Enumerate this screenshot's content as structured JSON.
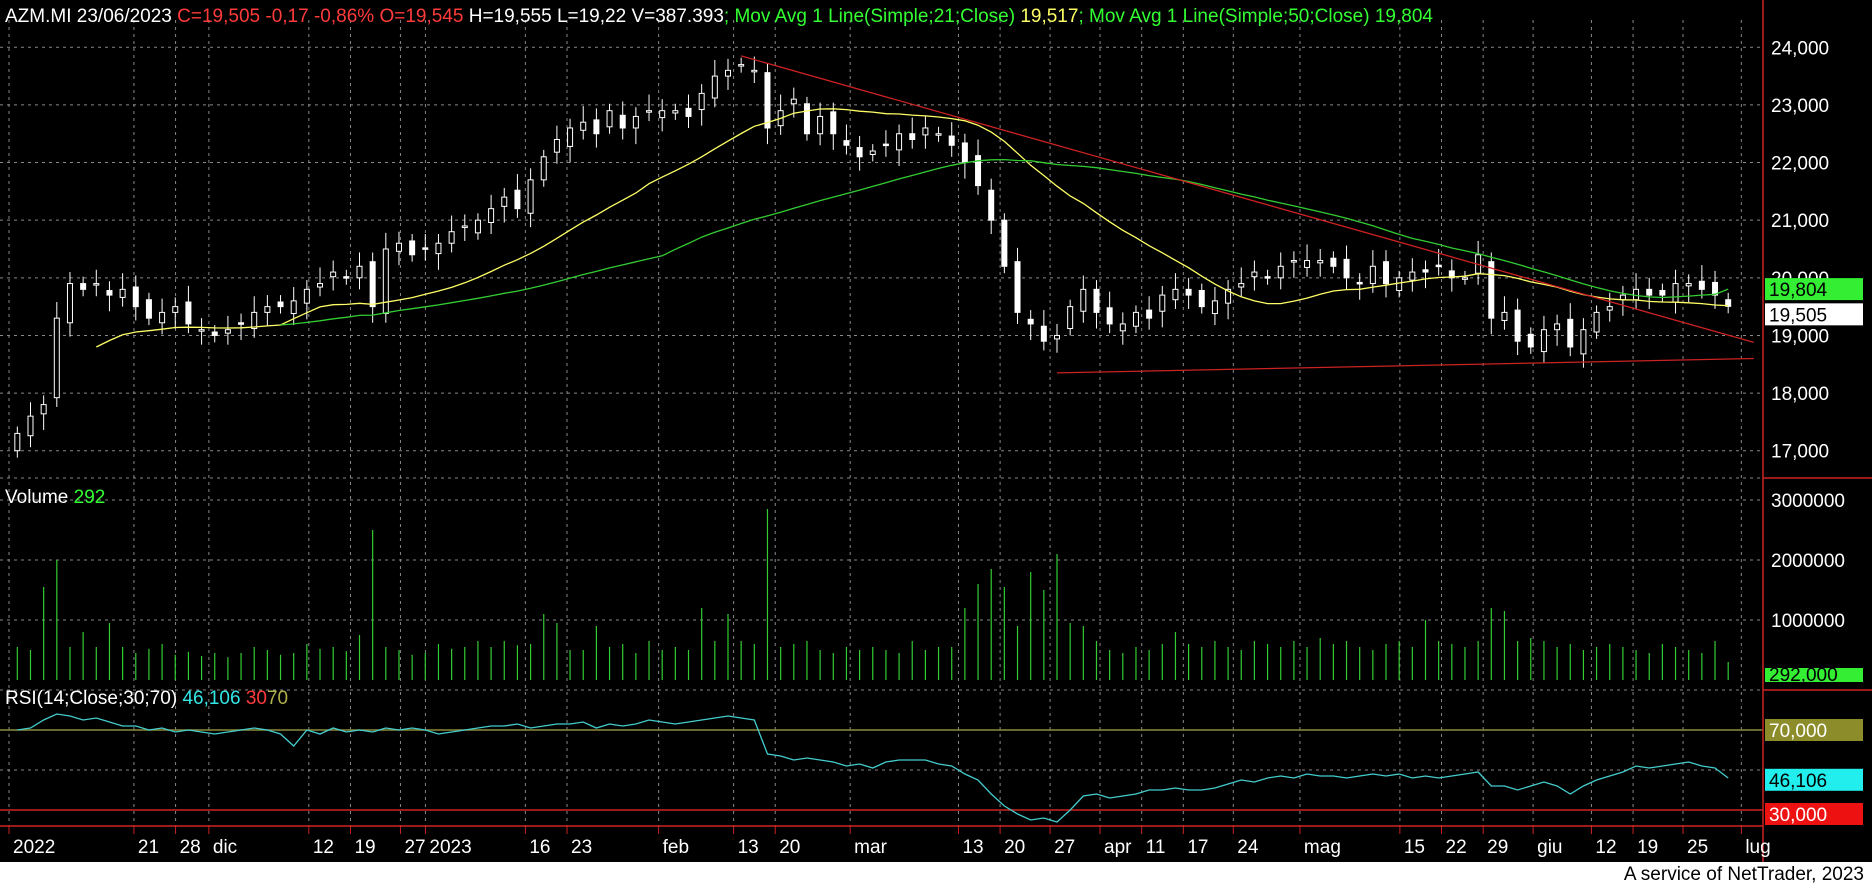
{
  "header": {
    "ticker": "AZM.MI",
    "date": "23/06/2023",
    "close": "C=19,505",
    "change": "-0,17",
    "change_pct": "-0,86%",
    "open": "O=19,545",
    "high": "H=19,555",
    "low": "L=19,22",
    "volume": "V=387.393",
    "ma1_label": "; Mov Avg 1 Line(Simple;21;Close)",
    "ma1_value": "19,517",
    "ma2_label": "; Mov Avg 1 Line(Simple;50;Close)",
    "ma2_value": "19,804"
  },
  "volume_header": {
    "label": "Volume",
    "value": "292"
  },
  "rsi_header": {
    "label": "RSI(14;Close;30;70)",
    "value": "46,106",
    "low": "30",
    "high": "70"
  },
  "footer": "A service of NetTrader, 2023",
  "colors": {
    "background": "#000000",
    "candle_up": "#ffffff",
    "candle_down": "#ffffff",
    "ma21": "#ffff66",
    "ma50": "#33cc33",
    "trendline": "#cc2222",
    "volume": "#33cc33",
    "rsi": "#44cccc",
    "rsi_upper": "#8c8c3c",
    "rsi_lower": "#cc2222",
    "grid": "#888888",
    "axis": "#cc2222"
  },
  "chart_data": [
    {
      "type": "candlestick",
      "title": "AZM.MI 23/06/2023",
      "y_ticks": [
        "24,000",
        "23,000",
        "22,000",
        "21,000",
        "20,000",
        "19,000",
        "18,000",
        "17,000"
      ],
      "ylim": [
        16.7,
        24.3
      ],
      "x_tick_labels": [
        "2022",
        "21",
        "28",
        "dic",
        "12",
        "19",
        "27",
        "2023",
        "16",
        "23",
        "feb",
        "13",
        "20",
        "mar",
        "13",
        "20",
        "27",
        "apr",
        "11",
        "17",
        "24",
        "mag",
        "15",
        "22",
        "29",
        "giu",
        "12",
        "19",
        "25",
        "lug"
      ],
      "x_label_day_index": [
        0,
        15,
        20,
        24,
        36,
        41,
        47,
        50,
        62,
        67,
        78,
        87,
        92,
        101,
        114,
        119,
        125,
        131,
        136,
        141,
        147,
        155,
        167,
        172,
        177,
        183,
        190,
        195,
        201,
        208
      ],
      "series_close": [
        17.3,
        17.6,
        17.8,
        19.3,
        19.9,
        19.8,
        19.9,
        19.7,
        19.8,
        19.5,
        19.3,
        19.4,
        19.5,
        19.2,
        19.1,
        19.0,
        19.1,
        19.2,
        19.4,
        19.5,
        19.5,
        19.6,
        19.8,
        19.9,
        20.1,
        20.0,
        20.2,
        19.5,
        20.5,
        20.6,
        20.4,
        20.5,
        20.6,
        20.8,
        20.9,
        21.0,
        21.2,
        21.4,
        21.2,
        21.7,
        22.1,
        22.4,
        22.6,
        22.7,
        22.5,
        22.9,
        22.6,
        22.8,
        22.9,
        22.9,
        22.9,
        22.8,
        23.2,
        23.5,
        23.6,
        23.7,
        23.6,
        22.6,
        22.9,
        23.1,
        22.5,
        22.8,
        22.5,
        22.3,
        22.1,
        22.2,
        22.3,
        22.5,
        22.4,
        22.6,
        22.5,
        22.3,
        22.0,
        21.6,
        21.0,
        20.2,
        19.4,
        19.2,
        18.9,
        19.0,
        19.5,
        19.8,
        19.4,
        19.2,
        19.2,
        19.4,
        19.3,
        19.7,
        19.8,
        19.7,
        19.5,
        19.6,
        19.8,
        19.9,
        20.1,
        20.0,
        20.2,
        20.3,
        20.3,
        20.3,
        20.2,
        20.0,
        19.9,
        20.2,
        19.9,
        20.0,
        20.1,
        20.1,
        20.2,
        20.0,
        20.0,
        20.4,
        19.3,
        19.4,
        18.9,
        18.8,
        19.1,
        19.2,
        18.8,
        19.1,
        19.4,
        19.5,
        19.7,
        19.8,
        19.7,
        19.7,
        19.9,
        19.9,
        19.8,
        19.7,
        19.505
      ],
      "ma21_label": "Mov Avg 1 Line(Simple;21;Close)",
      "ma21_last": 19.517,
      "ma50_label": "Mov Avg 1 Line(Simple;50;Close)",
      "ma50_last": 19.804,
      "last_close": 19.505,
      "price_labels": [
        "19,804",
        "19,505"
      ],
      "trendlines": [
        {
          "from": [
            "feb 6",
            23.85
          ],
          "to": [
            "lug",
            18.88
          ]
        },
        {
          "from": [
            "mar 17",
            18.35
          ],
          "to": [
            "lug",
            18.6
          ]
        }
      ]
    },
    {
      "type": "bar",
      "title": "Volume",
      "last_value": 292,
      "value_tag": "292,000",
      "y_ticks": [
        "3000000",
        "2000000",
        "1000000"
      ],
      "ylim": [
        0,
        3000000
      ],
      "values": [
        550000,
        500000,
        1550000,
        2000000,
        550000,
        800000,
        550000,
        950000,
        550000,
        450000,
        520000,
        600000,
        420000,
        470000,
        400000,
        450000,
        380000,
        450000,
        550000,
        500000,
        420000,
        450000,
        600000,
        520000,
        550000,
        480000,
        750000,
        2500000,
        550000,
        500000,
        420000,
        450000,
        600000,
        520000,
        550000,
        650000,
        550000,
        650000,
        580000,
        600000,
        1100000,
        950000,
        500000,
        500000,
        900000,
        550000,
        600000,
        450000,
        650000,
        500000,
        550000,
        500000,
        1200000,
        650000,
        1100000,
        650000,
        600000,
        2850000,
        550000,
        600000,
        650000,
        500000,
        450000,
        550000,
        500000,
        550000,
        500000,
        450000,
        650000,
        500000,
        550000,
        550000,
        1200000,
        1600000,
        1850000,
        1550000,
        900000,
        1800000,
        1500000,
        2100000,
        950000,
        900000,
        650000,
        500000,
        450000,
        550000,
        500000,
        600000,
        800000,
        600000,
        550000,
        650000,
        550000,
        500000,
        650000,
        600000,
        550000,
        650000,
        550000,
        700000,
        600000,
        650000,
        550000,
        500000,
        600000,
        650000,
        550000,
        1000000,
        650000,
        600000,
        550000,
        650000,
        1200000,
        1150000,
        650000,
        700000,
        650000,
        550000,
        600000,
        500000,
        550000,
        600000,
        550000,
        500000,
        450000,
        600000,
        550000,
        500000,
        450000,
        650000,
        300000
      ]
    },
    {
      "type": "line",
      "title": "RSI(14;Close;30;70)",
      "last_value": 46.106,
      "levels": [
        30,
        70
      ],
      "value_tags": [
        "70,000",
        "46,106",
        "30,000"
      ],
      "ylim": [
        20,
        85
      ],
      "values": [
        70,
        71,
        75,
        78,
        77,
        75,
        76,
        74,
        72,
        72,
        70,
        71,
        69,
        70,
        69,
        68,
        69,
        70,
        71,
        70,
        68,
        62,
        70,
        68,
        71,
        69,
        70,
        69,
        71,
        70,
        71,
        70,
        68,
        69,
        70,
        71,
        72,
        72,
        73,
        71,
        72,
        73,
        73,
        74,
        71,
        73,
        72,
        73,
        75,
        74,
        73,
        74,
        75,
        76,
        77,
        76,
        75,
        58,
        57,
        55,
        56,
        55,
        54,
        52,
        53,
        51,
        54,
        55,
        55,
        55,
        53,
        52,
        48,
        45,
        38,
        32,
        28,
        25,
        26,
        24,
        30,
        37,
        38,
        36,
        37,
        38,
        40,
        40,
        41,
        40,
        40,
        41,
        43,
        45,
        44,
        46,
        47,
        46,
        48,
        47,
        47,
        46,
        47,
        48,
        47,
        48,
        46,
        47,
        46,
        47,
        48,
        49,
        42,
        42,
        40,
        42,
        44,
        42,
        38,
        42,
        45,
        47,
        49,
        52,
        51,
        52,
        53,
        54,
        52,
        51,
        46
      ]
    }
  ]
}
